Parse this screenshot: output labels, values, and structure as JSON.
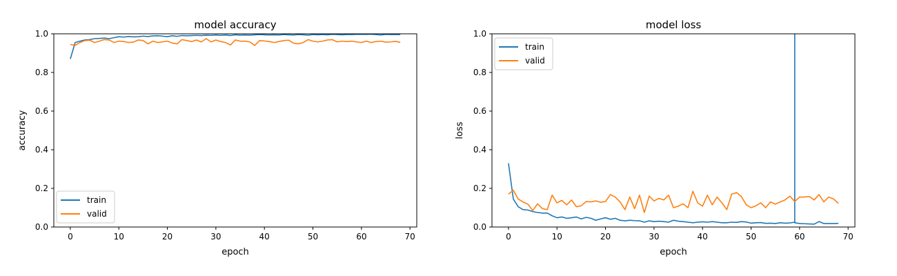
{
  "colors": {
    "train": "#1f77b4",
    "valid": "#ff7f0e",
    "axis": "#000000",
    "background": "#ffffff"
  },
  "chart_data": [
    {
      "type": "line",
      "title": "model accuracy",
      "xlabel": "epoch",
      "ylabel": "accuracy",
      "xlim": [
        -3.4,
        71.4
      ],
      "ylim": [
        0.0,
        1.0
      ],
      "xticks": [
        0,
        10,
        20,
        30,
        40,
        50,
        60,
        70
      ],
      "yticks": [
        0.0,
        0.2,
        0.4,
        0.6,
        0.8,
        1.0
      ],
      "xtick_labels": [
        "0",
        "10",
        "20",
        "30",
        "40",
        "50",
        "60",
        "70"
      ],
      "ytick_labels": [
        "0.0",
        "0.2",
        "0.4",
        "0.6",
        "0.8",
        "1.0"
      ],
      "grid": false,
      "legend_position": "lower-left",
      "series": [
        {
          "name": "train",
          "color": "#1f77b4",
          "x": [
            0,
            1,
            2,
            3,
            4,
            5,
            6,
            7,
            8,
            9,
            10,
            11,
            12,
            13,
            14,
            15,
            16,
            17,
            18,
            19,
            20,
            21,
            22,
            23,
            24,
            25,
            26,
            27,
            28,
            29,
            30,
            31,
            32,
            33,
            34,
            35,
            36,
            37,
            38,
            39,
            40,
            41,
            42,
            43,
            44,
            45,
            46,
            47,
            48,
            49,
            50,
            51,
            52,
            53,
            54,
            55,
            56,
            57,
            58,
            59,
            60,
            61,
            62,
            63,
            64,
            65,
            66,
            67,
            68
          ],
          "values": [
            0.87,
            0.955,
            0.962,
            0.968,
            0.97,
            0.975,
            0.976,
            0.978,
            0.975,
            0.98,
            0.985,
            0.983,
            0.986,
            0.984,
            0.985,
            0.988,
            0.986,
            0.989,
            0.99,
            0.988,
            0.985,
            0.99,
            0.987,
            0.991,
            0.99,
            0.991,
            0.992,
            0.991,
            0.993,
            0.992,
            0.994,
            0.992,
            0.994,
            0.991,
            0.995,
            0.993,
            0.994,
            0.993,
            0.995,
            0.996,
            0.995,
            0.994,
            0.995,
            0.994,
            0.996,
            0.995,
            0.994,
            0.996,
            0.995,
            0.993,
            0.996,
            0.995,
            0.996,
            0.995,
            0.997,
            0.996,
            0.995,
            0.996,
            0.996,
            0.997,
            0.997,
            0.997,
            0.998,
            0.996,
            0.994,
            0.997,
            0.996,
            0.996,
            0.996
          ]
        },
        {
          "name": "valid",
          "color": "#ff7f0e",
          "x": [
            0,
            1,
            2,
            3,
            4,
            5,
            6,
            7,
            8,
            9,
            10,
            11,
            12,
            13,
            14,
            15,
            16,
            17,
            18,
            19,
            20,
            21,
            22,
            23,
            24,
            25,
            26,
            27,
            28,
            29,
            30,
            31,
            32,
            33,
            34,
            35,
            36,
            37,
            38,
            39,
            40,
            41,
            42,
            43,
            44,
            45,
            46,
            47,
            48,
            49,
            50,
            51,
            52,
            53,
            54,
            55,
            56,
            57,
            58,
            59,
            60,
            61,
            62,
            63,
            64,
            65,
            66,
            67,
            68
          ],
          "values": [
            0.945,
            0.94,
            0.955,
            0.965,
            0.967,
            0.955,
            0.962,
            0.97,
            0.968,
            0.955,
            0.962,
            0.96,
            0.955,
            0.957,
            0.968,
            0.965,
            0.948,
            0.962,
            0.955,
            0.958,
            0.962,
            0.952,
            0.948,
            0.97,
            0.965,
            0.96,
            0.968,
            0.958,
            0.975,
            0.958,
            0.968,
            0.96,
            0.955,
            0.942,
            0.968,
            0.962,
            0.962,
            0.958,
            0.94,
            0.965,
            0.963,
            0.96,
            0.955,
            0.96,
            0.965,
            0.967,
            0.952,
            0.948,
            0.955,
            0.97,
            0.962,
            0.958,
            0.962,
            0.968,
            0.97,
            0.958,
            0.962,
            0.96,
            0.962,
            0.958,
            0.955,
            0.962,
            0.955,
            0.96,
            0.962,
            0.957,
            0.958,
            0.961,
            0.956
          ]
        }
      ]
    },
    {
      "type": "line",
      "title": "model loss",
      "xlabel": "epoch",
      "ylabel": "loss",
      "xlim": [
        -3.4,
        71.4
      ],
      "ylim": [
        0.0,
        1.0
      ],
      "xticks": [
        0,
        10,
        20,
        30,
        40,
        50,
        60,
        70
      ],
      "yticks": [
        0.0,
        0.2,
        0.4,
        0.6,
        0.8,
        1.0
      ],
      "xtick_labels": [
        "0",
        "10",
        "20",
        "30",
        "40",
        "50",
        "60",
        "70"
      ],
      "ytick_labels": [
        "0.0",
        "0.2",
        "0.4",
        "0.6",
        "0.8",
        "1.0"
      ],
      "grid": false,
      "legend_position": "upper-left",
      "series": [
        {
          "name": "train",
          "color": "#1f77b4",
          "x": [
            0,
            1,
            2,
            3,
            4,
            5,
            6,
            7,
            8,
            9,
            10,
            11,
            12,
            13,
            14,
            15,
            16,
            17,
            18,
            19,
            20,
            21,
            22,
            23,
            24,
            25,
            26,
            27,
            28,
            29,
            30,
            31,
            32,
            33,
            34,
            35,
            36,
            37,
            38,
            39,
            40,
            41,
            42,
            43,
            44,
            45,
            46,
            47,
            48,
            49,
            50,
            51,
            52,
            53,
            54,
            55,
            56,
            57,
            58,
            59,
            59,
            59,
            60,
            61,
            62,
            63,
            64,
            65,
            66,
            67,
            68
          ],
          "values": [
            0.33,
            0.145,
            0.105,
            0.09,
            0.088,
            0.08,
            0.075,
            0.072,
            0.072,
            0.058,
            0.048,
            0.052,
            0.045,
            0.048,
            0.052,
            0.042,
            0.05,
            0.045,
            0.035,
            0.042,
            0.048,
            0.04,
            0.045,
            0.035,
            0.032,
            0.035,
            0.033,
            0.032,
            0.025,
            0.032,
            0.028,
            0.03,
            0.028,
            0.025,
            0.035,
            0.03,
            0.028,
            0.025,
            0.022,
            0.025,
            0.027,
            0.025,
            0.028,
            0.025,
            0.022,
            0.022,
            0.025,
            0.024,
            0.028,
            0.026,
            0.02,
            0.022,
            0.023,
            0.019,
            0.02,
            0.018,
            0.022,
            0.02,
            0.021,
            0.025,
            1.0,
            0.022,
            0.018,
            0.017,
            0.016,
            0.015,
            0.028,
            0.018,
            0.018,
            0.018,
            0.019
          ]
        },
        {
          "name": "valid",
          "color": "#ff7f0e",
          "x": [
            0,
            1,
            2,
            3,
            4,
            5,
            6,
            7,
            8,
            9,
            10,
            11,
            12,
            13,
            14,
            15,
            16,
            17,
            18,
            19,
            20,
            21,
            22,
            23,
            24,
            25,
            26,
            27,
            28,
            29,
            30,
            31,
            32,
            33,
            34,
            35,
            36,
            37,
            38,
            39,
            40,
            41,
            42,
            43,
            44,
            45,
            46,
            47,
            48,
            49,
            50,
            51,
            52,
            53,
            54,
            55,
            56,
            57,
            58,
            59,
            60,
            61,
            62,
            63,
            64,
            65,
            66,
            67,
            68
          ],
          "values": [
            0.17,
            0.19,
            0.145,
            0.13,
            0.118,
            0.085,
            0.12,
            0.095,
            0.09,
            0.165,
            0.125,
            0.138,
            0.115,
            0.14,
            0.105,
            0.11,
            0.132,
            0.13,
            0.135,
            0.128,
            0.132,
            0.168,
            0.155,
            0.13,
            0.09,
            0.155,
            0.095,
            0.165,
            0.075,
            0.16,
            0.135,
            0.148,
            0.14,
            0.165,
            0.1,
            0.108,
            0.12,
            0.1,
            0.185,
            0.125,
            0.108,
            0.165,
            0.115,
            0.155,
            0.125,
            0.09,
            0.17,
            0.178,
            0.158,
            0.115,
            0.1,
            0.11,
            0.125,
            0.1,
            0.13,
            0.118,
            0.13,
            0.14,
            0.16,
            0.132,
            0.155,
            0.155,
            0.158,
            0.14,
            0.168,
            0.13,
            0.155,
            0.145,
            0.122
          ]
        }
      ]
    }
  ]
}
